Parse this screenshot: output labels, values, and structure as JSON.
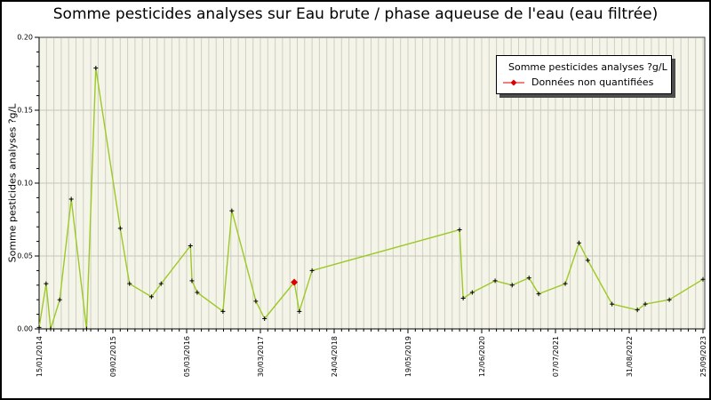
{
  "colors": {
    "line": "#9dc928",
    "marker": "#000000",
    "non_quantified": "#dd0000",
    "plot_bg": "#f5f4e8",
    "stripe": "#cfcec3",
    "grid": "#c6c6bd",
    "frame": "#444444",
    "axis": "#000000"
  },
  "chart_data": {
    "type": "line",
    "title": "Somme pesticides analyses sur Eau brute / phase aqueuse de l'eau (eau filtrée)",
    "ylabel": "Somme pesticides analyses ?g/L",
    "xlabel": "",
    "ylim": [
      0,
      0.2
    ],
    "yticks": [
      "0.00",
      "0.05",
      "0.10",
      "0.15",
      "0.20"
    ],
    "y_minor_step": 0.01,
    "xticks": [
      "15/01/2014",
      "09/02/2015",
      "05/03/2016",
      "30/03/2017",
      "24/04/2018",
      "19/05/2019",
      "12/06/2020",
      "07/07/2021",
      "31/08/2022",
      "25/09/2023"
    ],
    "x_minor_per_major": 10,
    "grid": true,
    "legend_position": "top-right",
    "legend": [
      "Somme pesticides analyses ?g/L",
      "Données non quantifiées"
    ],
    "series": [
      {
        "name": "Somme pesticides analyses ?g/L",
        "points": [
          {
            "date": "15/01/2014",
            "value": 0.001
          },
          {
            "date": "21/02/2014",
            "value": 0.031
          },
          {
            "date": "17/03/2014",
            "value": 0.0
          },
          {
            "date": "04/05/2014",
            "value": 0.02
          },
          {
            "date": "04/07/2014",
            "value": 0.089
          },
          {
            "date": "23/09/2014",
            "value": 0.0
          },
          {
            "date": "11/11/2014",
            "value": 0.179
          },
          {
            "date": "20/03/2015",
            "value": 0.069
          },
          {
            "date": "08/05/2015",
            "value": 0.031
          },
          {
            "date": "01/09/2015",
            "value": 0.022
          },
          {
            "date": "22/10/2015",
            "value": 0.031
          },
          {
            "date": "25/03/2016",
            "value": 0.057
          },
          {
            "date": "02/04/2016",
            "value": 0.033
          },
          {
            "date": "30/04/2016",
            "value": 0.025
          },
          {
            "date": "13/09/2016",
            "value": 0.012
          },
          {
            "date": "30/10/2016",
            "value": 0.081
          },
          {
            "date": "06/03/2017",
            "value": 0.019
          },
          {
            "date": "21/04/2017",
            "value": 0.007
          },
          {
            "date": "25/09/2017",
            "value": 0.032,
            "quantified": false
          },
          {
            "date": "22/10/2017",
            "value": 0.012
          },
          {
            "date": "28/12/2017",
            "value": 0.04
          },
          {
            "date": "16/02/2020",
            "value": 0.068
          },
          {
            "date": "06/03/2020",
            "value": 0.021
          },
          {
            "date": "23/04/2020",
            "value": 0.025
          },
          {
            "date": "22/08/2020",
            "value": 0.033
          },
          {
            "date": "20/11/2020",
            "value": 0.03
          },
          {
            "date": "17/02/2021",
            "value": 0.035
          },
          {
            "date": "09/04/2021",
            "value": 0.024
          },
          {
            "date": "01/09/2021",
            "value": 0.031
          },
          {
            "date": "18/11/2021",
            "value": 0.059
          },
          {
            "date": "07/01/2022",
            "value": 0.047
          },
          {
            "date": "25/05/2022",
            "value": 0.017
          },
          {
            "date": "13/10/2022",
            "value": 0.013
          },
          {
            "date": "24/11/2022",
            "value": 0.017
          },
          {
            "date": "31/03/2023",
            "value": 0.02
          },
          {
            "date": "25/09/2023",
            "value": 0.034
          }
        ]
      }
    ]
  }
}
